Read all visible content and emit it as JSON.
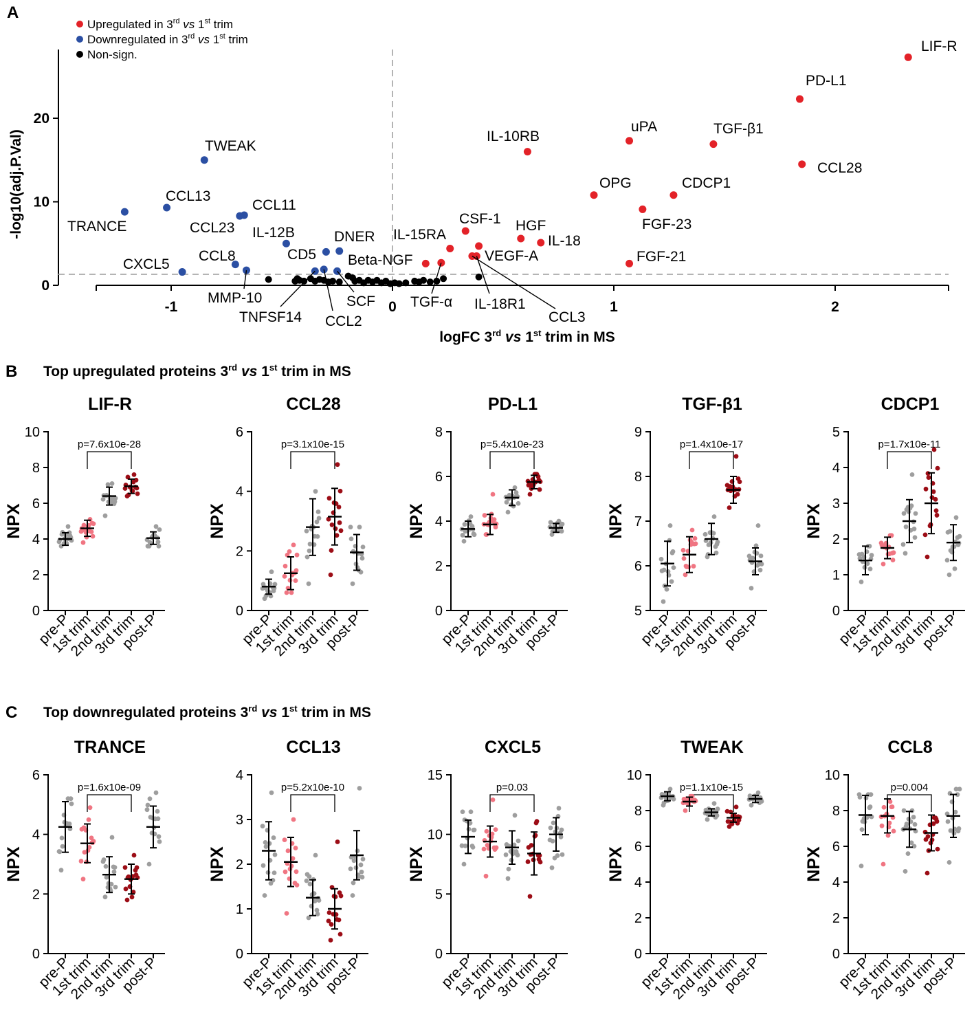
{
  "colors": {
    "up": "#e32228",
    "down": "#2b4fa3",
    "ns": "#000000",
    "gray": "#9e9e9e",
    "pink": "#f07582",
    "dark": "#9c0d16",
    "axis": "#000000",
    "dash": "#b4b4b4"
  },
  "chart_data": [
    {
      "type": "scatter",
      "panel": "A",
      "xlabel": "logFC 3rd vs 1st trim in MS",
      "xlabel_parts": [
        "logFC 3",
        "rd",
        " vs ",
        "1",
        "st",
        " trim in MS"
      ],
      "ylabel": "-log10(adj.P.Val)",
      "xlim": [
        -1.3,
        2.5
      ],
      "ylim": [
        0,
        28
      ],
      "xticks": [
        -1,
        0,
        1,
        2
      ],
      "yticks": [
        0,
        10,
        20
      ],
      "xtick_labels": [
        "-1",
        "0",
        "1",
        "2"
      ],
      "ytick_labels": [
        "0",
        "10",
        "20"
      ],
      "threshold_y": 1.3,
      "legend": {
        "up": [
          "Upregulated in 3",
          "rd",
          " vs ",
          "1",
          "st",
          " trim"
        ],
        "down": [
          "Downregulated in 3",
          "rd",
          " vs ",
          "1",
          "st",
          " trim"
        ],
        "ns": "Non-sign."
      },
      "points": [
        {
          "label": "LIF-R",
          "x": 2.33,
          "y": 27.3,
          "cat": "up"
        },
        {
          "label": "PD-L1",
          "x": 1.84,
          "y": 22.3,
          "cat": "up"
        },
        {
          "label": "uPA",
          "x": 1.07,
          "y": 17.3,
          "cat": "up"
        },
        {
          "label": "TGF-β1",
          "x": 1.45,
          "y": 16.9,
          "cat": "up"
        },
        {
          "label": "IL-10RB",
          "x": 0.61,
          "y": 16.0,
          "cat": "up"
        },
        {
          "label": "CCL28",
          "x": 1.85,
          "y": 14.5,
          "cat": "up"
        },
        {
          "label": "OPG",
          "x": 0.91,
          "y": 10.8,
          "cat": "up"
        },
        {
          "label": "CDCP1",
          "x": 1.27,
          "y": 10.8,
          "cat": "up"
        },
        {
          "label": "FGF-23",
          "x": 1.13,
          "y": 9.1,
          "cat": "up"
        },
        {
          "label": "CSF-1",
          "x": 0.33,
          "y": 6.5,
          "cat": "up"
        },
        {
          "label": "HGF",
          "x": 0.58,
          "y": 5.6,
          "cat": "up"
        },
        {
          "label": "IL-18",
          "x": 0.67,
          "y": 5.1,
          "cat": "up"
        },
        {
          "label": "IL-15RA",
          "x": 0.26,
          "y": 4.4,
          "cat": "up"
        },
        {
          "label": "VEGF-A",
          "x": 0.39,
          "y": 4.7,
          "cat": "up"
        },
        {
          "label": "IL-18R1",
          "x": 0.38,
          "y": 3.5,
          "cat": "up"
        },
        {
          "label": "CCL3",
          "x": 0.36,
          "y": 3.5,
          "cat": "up"
        },
        {
          "label": "Beta-NGF",
          "x": 0.15,
          "y": 2.6,
          "cat": "up"
        },
        {
          "label": "TGF-α",
          "x": 0.22,
          "y": 2.7,
          "cat": "up"
        },
        {
          "label": "FGF-21",
          "x": 1.07,
          "y": 2.6,
          "cat": "up"
        },
        {
          "label": "TWEAK",
          "x": -0.85,
          "y": 15.0,
          "cat": "down"
        },
        {
          "label": "CCL13",
          "x": -1.02,
          "y": 9.3,
          "cat": "down"
        },
        {
          "label": "TRANCE",
          "x": -1.21,
          "y": 8.8,
          "cat": "down"
        },
        {
          "label": "CCL11",
          "x": -0.67,
          "y": 8.4,
          "cat": "down"
        },
        {
          "label": "CCL23",
          "x": -0.69,
          "y": 8.3,
          "cat": "down"
        },
        {
          "label": "IL-12B",
          "x": -0.48,
          "y": 5.0,
          "cat": "down"
        },
        {
          "label": "DNER",
          "x": -0.24,
          "y": 4.1,
          "cat": "down"
        },
        {
          "label": "CD5",
          "x": -0.3,
          "y": 4.0,
          "cat": "down"
        },
        {
          "label": "CCL8",
          "x": -0.71,
          "y": 2.5,
          "cat": "down"
        },
        {
          "label": "CXCL5",
          "x": -0.95,
          "y": 1.6,
          "cat": "down"
        },
        {
          "label": "MMP-10",
          "x": -0.66,
          "y": 1.8,
          "cat": "down"
        },
        {
          "label": "TNFSF14",
          "x": -0.35,
          "y": 1.7,
          "cat": "down"
        },
        {
          "label": "CCL2",
          "x": -0.31,
          "y": 1.9,
          "cat": "down"
        },
        {
          "label": "SCF",
          "x": -0.25,
          "y": 1.7,
          "cat": "down"
        }
      ],
      "ns_points": [
        {
          "x": -0.56,
          "y": 0.7
        },
        {
          "x": -0.43,
          "y": 0.8
        },
        {
          "x": -0.44,
          "y": 0.5
        },
        {
          "x": -0.42,
          "y": 0.6
        },
        {
          "x": -0.4,
          "y": 0.5
        },
        {
          "x": -0.37,
          "y": 0.8
        },
        {
          "x": -0.35,
          "y": 0.5
        },
        {
          "x": -0.33,
          "y": 0.7
        },
        {
          "x": -0.31,
          "y": 0.6
        },
        {
          "x": -0.29,
          "y": 0.4
        },
        {
          "x": -0.27,
          "y": 0.5
        },
        {
          "x": -0.24,
          "y": 0.4
        },
        {
          "x": -0.2,
          "y": 1.1
        },
        {
          "x": -0.18,
          "y": 0.9
        },
        {
          "x": -0.17,
          "y": 0.5
        },
        {
          "x": -0.15,
          "y": 0.6
        },
        {
          "x": -0.13,
          "y": 0.3
        },
        {
          "x": -0.11,
          "y": 0.6
        },
        {
          "x": -0.09,
          "y": 0.4
        },
        {
          "x": -0.07,
          "y": 0.6
        },
        {
          "x": -0.05,
          "y": 0.3
        },
        {
          "x": -0.03,
          "y": 0.5
        },
        {
          "x": -0.01,
          "y": 0.2
        },
        {
          "x": 0.01,
          "y": 0.3
        },
        {
          "x": 0.03,
          "y": 0.2
        },
        {
          "x": 0.06,
          "y": 0.3
        },
        {
          "x": 0.1,
          "y": 0.5
        },
        {
          "x": 0.12,
          "y": 0.4
        },
        {
          "x": 0.14,
          "y": 0.6
        },
        {
          "x": 0.17,
          "y": 0.4
        },
        {
          "x": 0.2,
          "y": 0.5
        },
        {
          "x": 0.23,
          "y": 0.8
        },
        {
          "x": 0.39,
          "y": 1.0
        }
      ]
    },
    {
      "type": "scatter",
      "panel": "B",
      "title": "LIF-R",
      "ylabel": "NPX",
      "ylim": [
        0,
        10
      ],
      "yticks": [
        0,
        2,
        4,
        6,
        8,
        10
      ],
      "bracket": [
        1,
        3
      ],
      "pvalue": "p=7.6x10e-28",
      "categories": [
        "pre-P",
        "1st trim",
        "2nd trim",
        "3rd trim",
        "post-P"
      ],
      "means": [
        4.0,
        4.6,
        6.4,
        6.95,
        4.05
      ],
      "sds": [
        0.35,
        0.45,
        0.5,
        0.4,
        0.35
      ],
      "point_mins": [
        3.6,
        3.8,
        5.3,
        6.4,
        3.6
      ],
      "point_maxs": [
        4.7,
        5.1,
        7.1,
        7.6,
        4.7
      ]
    },
    {
      "type": "scatter",
      "panel": "B",
      "title": "CCL28",
      "ylabel": "NPX",
      "ylim": [
        0,
        6
      ],
      "yticks": [
        0,
        2,
        4,
        6
      ],
      "bracket": [
        1,
        3
      ],
      "pvalue": "p=3.1x10e-15",
      "categories": [
        "pre-P",
        "1st trim",
        "2nd trim",
        "3rd trim",
        "post-P"
      ],
      "means": [
        0.8,
        1.25,
        2.8,
        3.15,
        1.95
      ],
      "sds": [
        0.25,
        0.55,
        0.95,
        0.95,
        0.6
      ],
      "point_mins": [
        0.4,
        0.6,
        0.9,
        1.2,
        0.9
      ],
      "point_maxs": [
        1.3,
        2.2,
        4.0,
        4.9,
        2.8
      ]
    },
    {
      "type": "scatter",
      "panel": "B",
      "title": "PD-L1",
      "ylabel": "NPX",
      "ylim": [
        0,
        8
      ],
      "yticks": [
        0,
        2,
        4,
        6,
        8
      ],
      "bracket": [
        1,
        3
      ],
      "pvalue": "p=5.4x10e-23",
      "categories": [
        "pre-P",
        "1st trim",
        "2nd trim",
        "3rd trim",
        "post-P"
      ],
      "means": [
        3.65,
        3.85,
        5.05,
        5.75,
        3.7
      ],
      "sds": [
        0.35,
        0.45,
        0.35,
        0.3,
        0.2
      ],
      "point_mins": [
        3.1,
        3.4,
        4.4,
        5.2,
        3.4
      ],
      "point_maxs": [
        4.2,
        5.2,
        5.5,
        6.1,
        4.0
      ]
    },
    {
      "type": "scatter",
      "panel": "B",
      "title": "TGF-β1",
      "ylabel": "NPX",
      "ylim": [
        5,
        9
      ],
      "yticks": [
        5,
        6,
        7,
        8,
        9
      ],
      "bracket": [
        1,
        3
      ],
      "pvalue": "p=1.4x10e-17",
      "categories": [
        "pre-P",
        "1st trim",
        "2nd trim",
        "3rd trim",
        "post-P"
      ],
      "means": [
        6.05,
        6.25,
        6.6,
        7.7,
        6.1
      ],
      "sds": [
        0.5,
        0.4,
        0.35,
        0.3,
        0.3
      ],
      "point_mins": [
        5.2,
        5.8,
        6.2,
        7.3,
        5.5
      ],
      "point_maxs": [
        6.9,
        6.8,
        7.1,
        8.45,
        6.9
      ]
    },
    {
      "type": "scatter",
      "panel": "B",
      "title": "CDCP1",
      "ylabel": "NPX",
      "ylim": [
        0,
        5
      ],
      "yticks": [
        0,
        1,
        2,
        3,
        4,
        5
      ],
      "bracket": [
        1,
        3
      ],
      "pvalue": "p=1.7x10e-11",
      "categories": [
        "pre-P",
        "1st trim",
        "2nd trim",
        "3rd trim",
        "post-P"
      ],
      "means": [
        1.4,
        1.75,
        2.5,
        3.0,
        1.9
      ],
      "sds": [
        0.4,
        0.3,
        0.6,
        0.85,
        0.5
      ],
      "point_mins": [
        0.8,
        1.3,
        1.6,
        1.5,
        1.0
      ],
      "point_maxs": [
        1.8,
        2.1,
        3.8,
        4.5,
        2.6
      ]
    },
    {
      "type": "scatter",
      "panel": "C",
      "title": "TRANCE",
      "ylabel": "NPX",
      "ylim": [
        0,
        6
      ],
      "yticks": [
        0,
        2,
        4,
        6
      ],
      "bracket": [
        1,
        3
      ],
      "pvalue": "p=1.6x10e-09",
      "categories": [
        "pre-P",
        "1st trim",
        "2nd trim",
        "3rd trim",
        "post-P"
      ],
      "means": [
        4.25,
        3.7,
        2.65,
        2.5,
        4.25
      ],
      "sds": [
        0.85,
        0.65,
        0.6,
        0.5,
        0.7
      ],
      "point_mins": [
        2.8,
        2.5,
        1.9,
        1.8,
        3.0
      ],
      "point_maxs": [
        5.2,
        4.9,
        3.9,
        3.3,
        5.4
      ]
    },
    {
      "type": "scatter",
      "panel": "C",
      "title": "CCL13",
      "ylabel": "NPX",
      "ylim": [
        0,
        4
      ],
      "yticks": [
        0,
        1,
        2,
        3,
        4
      ],
      "bracket": [
        1,
        3
      ],
      "pvalue": "p=5.2x10e-10",
      "categories": [
        "pre-P",
        "1st trim",
        "2nd trim",
        "3rd trim",
        "post-P"
      ],
      "means": [
        2.3,
        2.05,
        1.25,
        1.0,
        2.2
      ],
      "sds": [
        0.65,
        0.55,
        0.4,
        0.45,
        0.55
      ],
      "point_mins": [
        1.3,
        0.9,
        0.8,
        0.3,
        1.3
      ],
      "point_maxs": [
        3.6,
        3.0,
        2.2,
        2.5,
        3.7
      ]
    },
    {
      "type": "scatter",
      "panel": "C",
      "title": "CXCL5",
      "ylabel": "NPX",
      "ylim": [
        0,
        15
      ],
      "yticks": [
        0,
        5,
        10,
        15
      ],
      "bracket": [
        1,
        3
      ],
      "pvalue": "p=0.03",
      "categories": [
        "pre-P",
        "1st trim",
        "2nd trim",
        "3rd trim",
        "post-P"
      ],
      "means": [
        9.8,
        9.4,
        8.9,
        8.4,
        10.0
      ],
      "sds": [
        1.4,
        1.3,
        1.4,
        1.8,
        1.4
      ],
      "point_mins": [
        7.5,
        6.5,
        6.3,
        4.8,
        7.2
      ],
      "point_maxs": [
        11.9,
        12.9,
        11.6,
        11.1,
        12.2
      ]
    },
    {
      "type": "scatter",
      "panel": "C",
      "title": "TWEAK",
      "ylabel": "NPX",
      "ylim": [
        0,
        10
      ],
      "yticks": [
        0,
        2,
        4,
        6,
        8,
        10
      ],
      "bracket": [
        1,
        3
      ],
      "pvalue": "p=1.1x10e-15",
      "categories": [
        "pre-P",
        "1st trim",
        "2nd trim",
        "3rd trim",
        "post-P"
      ],
      "means": [
        8.8,
        8.5,
        7.9,
        7.6,
        8.65
      ],
      "sds": [
        0.25,
        0.25,
        0.2,
        0.25,
        0.2
      ],
      "point_mins": [
        8.3,
        8.0,
        7.5,
        7.1,
        8.3
      ],
      "point_maxs": [
        9.2,
        8.8,
        8.4,
        8.2,
        9.0
      ]
    },
    {
      "type": "scatter",
      "panel": "C",
      "title": "CCL8",
      "ylabel": "NPX",
      "ylim": [
        0,
        10
      ],
      "yticks": [
        0,
        2,
        4,
        6,
        8,
        10
      ],
      "bracket": [
        1,
        3
      ],
      "pvalue": "p=0.004",
      "categories": [
        "pre-P",
        "1st trim",
        "2nd trim",
        "3rd trim",
        "post-P"
      ],
      "means": [
        7.75,
        7.7,
        6.95,
        6.75,
        7.7
      ],
      "sds": [
        1.1,
        0.95,
        1.0,
        1.0,
        1.2
      ],
      "point_mins": [
        4.9,
        5.0,
        4.6,
        4.5,
        5.1
      ],
      "point_maxs": [
        8.9,
        8.5,
        8.0,
        7.6,
        9.2
      ]
    }
  ],
  "panel_letters": [
    "A",
    "B",
    "C"
  ],
  "sections": {
    "B": [
      "Top upregulated proteins 3",
      "rd",
      " vs ",
      "1",
      "st",
      " trim in MS"
    ],
    "C": [
      "Top downregulated proteins 3",
      "rd",
      " vs ",
      "1",
      "st",
      " trim in MS"
    ]
  }
}
